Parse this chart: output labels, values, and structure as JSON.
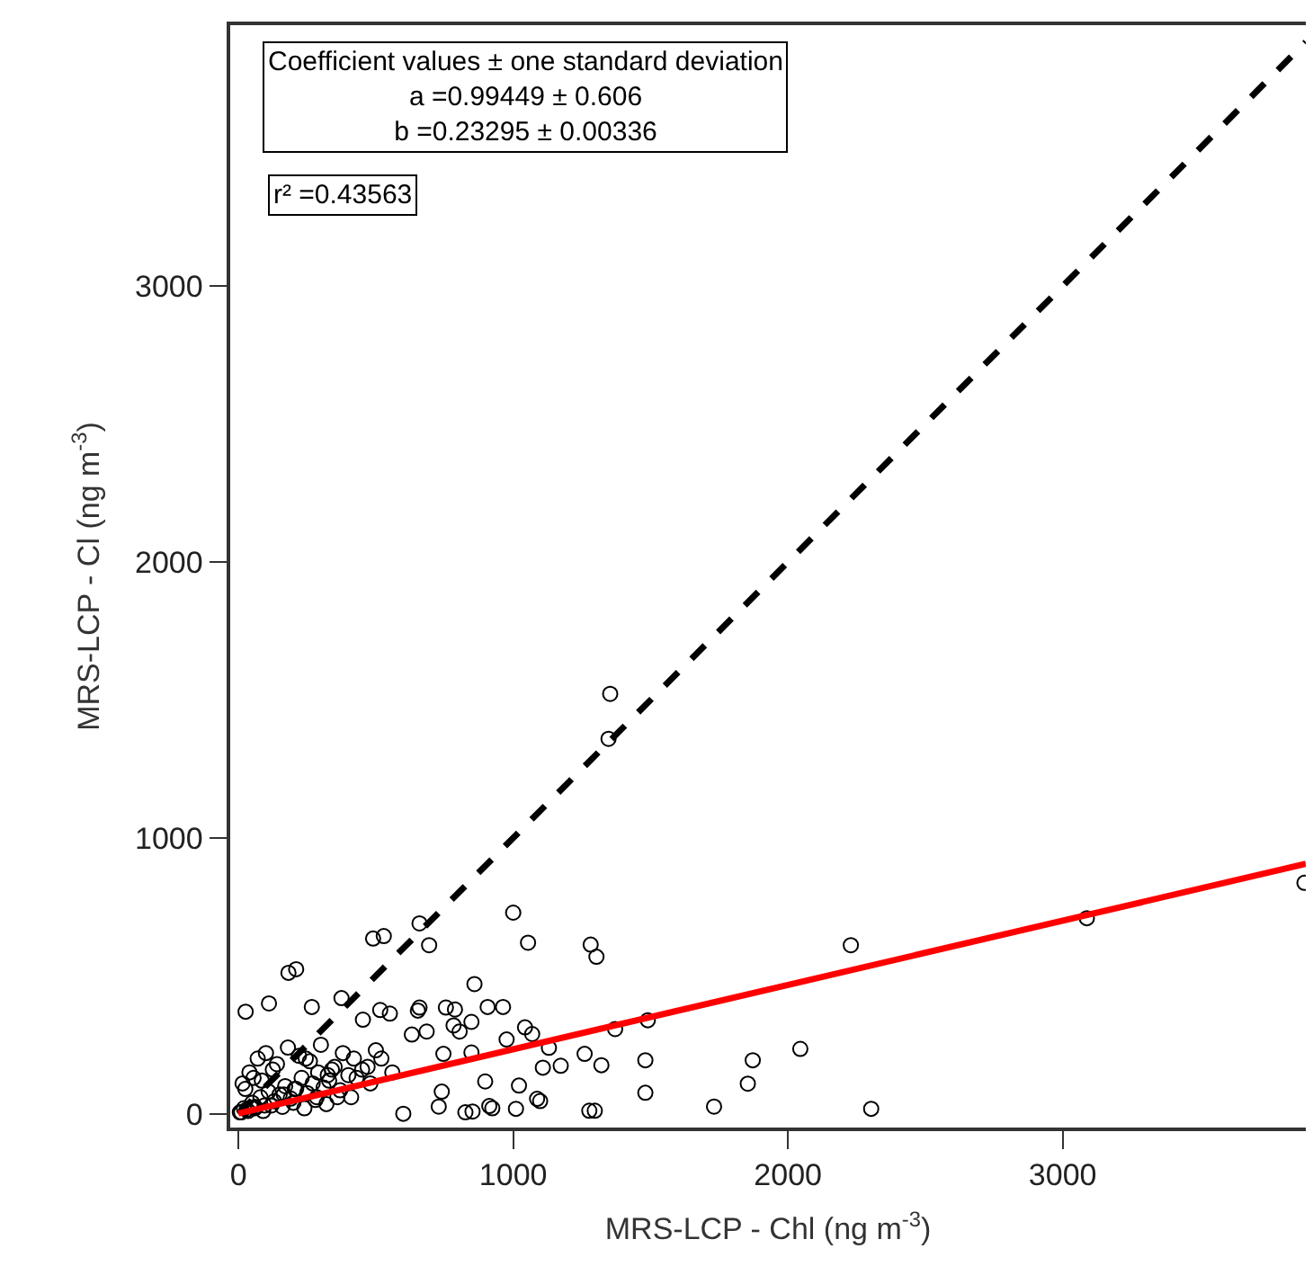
{
  "chart_data": {
    "type": "scatter",
    "xlabel": "MRS-LCP - Chl (ng m$^{-3}$)",
    "ylabel": "MRS-LCP - Cl (ng m$^{-3}$)",
    "xlim": [
      -30,
      3885
    ],
    "ylim": [
      -50,
      3946
    ],
    "xticks": [
      0,
      1000,
      2000,
      3000
    ],
    "yticks": [
      0,
      1000,
      2000,
      3000
    ],
    "annotations": [
      "Coefficient values ± one standard deviation\na =0.99449 ± 0.606\nb =0.23295 ± 0.00336",
      "r² =0.43563"
    ],
    "series": [
      {
        "color": "#000000",
        "marker": "circle",
        "x": [
          1353,
          1347,
          1000,
          659,
          694,
          490,
          529,
          1054,
          1282,
          1303,
          2229,
          182,
          210,
          26,
          111,
          267,
          375,
          859,
          659,
          755,
          788,
          907,
          963,
          453,
          516,
          551,
          848,
          1043,
          1069,
          976,
          1371,
          1490,
          1130,
          1173,
          1108,
          1260,
          1321,
          1481,
          1481,
          1731,
          1872,
          1854,
          2045,
          2303,
          1277,
          1297,
          1010,
          924,
          826,
          852,
          746,
          848,
          898,
          913,
          1021,
          1087,
          1098,
          740,
          729,
          653,
          685,
          631,
          783,
          805,
          3088,
          3880,
          10,
          20,
          35,
          50,
          60,
          80,
          95,
          110,
          130,
          150,
          170,
          190,
          210,
          230,
          250,
          270,
          290,
          310,
          330,
          350,
          370,
          400,
          420,
          450,
          480,
          500,
          15,
          40,
          70,
          100,
          140,
          180,
          220,
          260,
          300,
          340,
          380,
          430,
          470,
          520,
          560,
          600,
          5,
          30,
          60,
          90,
          120,
          160,
          200,
          240,
          280,
          320,
          360,
          410,
          25,
          55,
          85,
          125,
          165,
          205,
          245,
          285,
          325
        ],
        "values": [
          1522,
          1359,
          729,
          690,
          611,
          635,
          644,
          620,
          613,
          569,
          611,
          511,
          524,
          370,
          400,
          387,
          419,
          470,
          385,
          385,
          378,
          387,
          387,
          341,
          376,
          363,
          333,
          313,
          289,
          269,
          307,
          339,
          239,
          174,
          167,
          217,
          176,
          194,
          76,
          26,
          194,
          109,
          235,
          18,
          11,
          11,
          18,
          20,
          5,
          8,
          217,
          222,
          117,
          28,
          102,
          54,
          46,
          80,
          26,
          374,
          298,
          287,
          320,
          298,
          709,
          837,
          5,
          20,
          10,
          40,
          25,
          60,
          30,
          80,
          45,
          70,
          100,
          55,
          90,
          130,
          75,
          110,
          150,
          95,
          120,
          170,
          85,
          140,
          200,
          160,
          110,
          230,
          110,
          150,
          200,
          220,
          180,
          240,
          210,
          190,
          250,
          160,
          220,
          130,
          170,
          200,
          150,
          0,
          5,
          15,
          20,
          10,
          30,
          25,
          40,
          20,
          50,
          35,
          60,
          60,
          90,
          130,
          120,
          160,
          70,
          90,
          200,
          60,
          140
        ]
      },
      {
        "type": "line",
        "color": "#000000",
        "marker": "none",
        "line_style": "dashed",
        "x": [
          0,
          3885
        ],
        "values": [
          0,
          3885
        ]
      },
      {
        "type": "line",
        "color": "#ff0000",
        "marker": "none",
        "line_style": "solid",
        "x": [
          0,
          3885
        ],
        "values": [
          1,
          906
        ]
      }
    ]
  }
}
